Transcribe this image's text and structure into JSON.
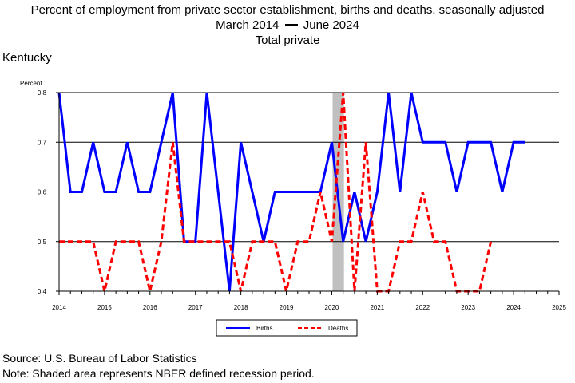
{
  "header": {
    "title": "Percent of employment from private sector establishment, births and deaths, seasonally adjusted",
    "period_start": "March 2014",
    "period_end": "June 2024",
    "subtitle": "Total private",
    "state": "Kentucky"
  },
  "footer": {
    "source": "Source: U.S. Bureau of Labor Statistics",
    "note": "Note: Shaded area represents NBER defined recession period."
  },
  "chart_data": {
    "type": "line",
    "ylabel": "Percent",
    "ylim": [
      0.4,
      0.8
    ],
    "xlim": [
      2014,
      2025
    ],
    "yticks": [
      "0.4",
      "0.5",
      "0.6",
      "0.7",
      "0.8"
    ],
    "xticks": [
      "2014",
      "2015",
      "2016",
      "2017",
      "2018",
      "2019",
      "2020",
      "2021",
      "2022",
      "2023",
      "2024",
      "2025"
    ],
    "grid": "horizontal",
    "legend_position": "bottom",
    "recession": {
      "start": 2020.0,
      "end": 2020.25,
      "color": "#c0c0c0"
    },
    "series": [
      {
        "name": "Births",
        "color": "#0000ff",
        "style": "solid",
        "x": [
          2014.0,
          2014.25,
          2014.5,
          2014.75,
          2015.0,
          2015.25,
          2015.5,
          2015.75,
          2016.0,
          2016.25,
          2016.5,
          2016.75,
          2017.0,
          2017.25,
          2017.5,
          2017.75,
          2018.0,
          2018.25,
          2018.5,
          2018.75,
          2019.0,
          2019.25,
          2019.5,
          2019.75,
          2020.0,
          2020.25,
          2020.5,
          2020.75,
          2021.0,
          2021.25,
          2021.5,
          2021.75,
          2022.0,
          2022.25,
          2022.5,
          2022.75,
          2023.0,
          2023.25,
          2023.5,
          2023.75,
          2024.0,
          2024.25
        ],
        "values": [
          0.8,
          0.6,
          0.6,
          0.7,
          0.6,
          0.6,
          0.7,
          0.6,
          0.6,
          0.7,
          0.8,
          0.5,
          0.5,
          0.8,
          0.6,
          0.4,
          0.7,
          0.6,
          0.5,
          0.6,
          0.6,
          0.6,
          0.6,
          0.6,
          0.7,
          0.5,
          0.6,
          0.5,
          0.6,
          0.8,
          0.6,
          0.8,
          0.7,
          0.7,
          0.7,
          0.6,
          0.7,
          0.7,
          0.7,
          0.6,
          0.7,
          0.7
        ]
      },
      {
        "name": "Deaths",
        "color": "#ff0000",
        "style": "dashed",
        "x": [
          2014.0,
          2014.25,
          2014.5,
          2014.75,
          2015.0,
          2015.25,
          2015.5,
          2015.75,
          2016.0,
          2016.25,
          2016.5,
          2016.75,
          2017.0,
          2017.25,
          2017.5,
          2017.75,
          2018.0,
          2018.25,
          2018.5,
          2018.75,
          2019.0,
          2019.25,
          2019.5,
          2019.75,
          2020.0,
          2020.25,
          2020.5,
          2020.75,
          2021.0,
          2021.25,
          2021.5,
          2021.75,
          2022.0,
          2022.25,
          2022.5,
          2022.75,
          2023.0,
          2023.25,
          2023.5
        ],
        "values": [
          0.5,
          0.5,
          0.5,
          0.5,
          0.4,
          0.5,
          0.5,
          0.5,
          0.4,
          0.5,
          0.7,
          0.5,
          0.5,
          0.5,
          0.5,
          0.5,
          0.4,
          0.5,
          0.5,
          0.5,
          0.4,
          0.5,
          0.5,
          0.6,
          0.5,
          0.8,
          0.4,
          0.7,
          0.4,
          0.4,
          0.5,
          0.5,
          0.6,
          0.5,
          0.5,
          0.4,
          0.4,
          0.4,
          0.5
        ]
      }
    ]
  }
}
